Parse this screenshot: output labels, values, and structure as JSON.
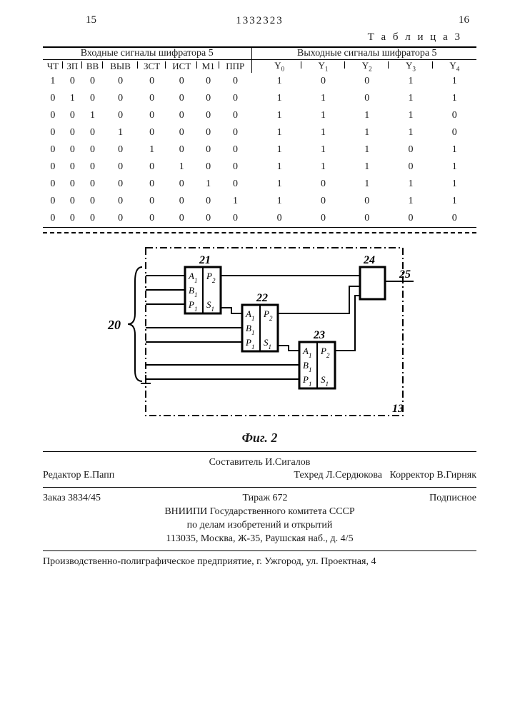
{
  "page": {
    "left_num": "15",
    "right_num": "16",
    "doc_number": "1332323"
  },
  "table": {
    "caption": "Т а б л и ц а  3",
    "group_input": "Входные сигналы шифратора 5",
    "group_output": "Выходные сигналы шифратора 5",
    "cols_in": [
      "ЧТ",
      "ЗП",
      "ВВ",
      "ВЫВ",
      "ЗСТ",
      "ИСТ",
      "М1",
      "ППР"
    ],
    "cols_out_base": "Y",
    "cols_out_idx": [
      "0",
      "1",
      "2",
      "3",
      "4"
    ],
    "rows": [
      [
        "1",
        "0",
        "0",
        "0",
        "0",
        "0",
        "0",
        "0",
        "1",
        "0",
        "0",
        "1",
        "1"
      ],
      [
        "0",
        "1",
        "0",
        "0",
        "0",
        "0",
        "0",
        "0",
        "1",
        "1",
        "0",
        "1",
        "1"
      ],
      [
        "0",
        "0",
        "1",
        "0",
        "0",
        "0",
        "0",
        "0",
        "1",
        "1",
        "1",
        "1",
        "0"
      ],
      [
        "0",
        "0",
        "0",
        "1",
        "0",
        "0",
        "0",
        "0",
        "1",
        "1",
        "1",
        "1",
        "0"
      ],
      [
        "0",
        "0",
        "0",
        "0",
        "1",
        "0",
        "0",
        "0",
        "1",
        "1",
        "1",
        "0",
        "1"
      ],
      [
        "0",
        "0",
        "0",
        "0",
        "0",
        "1",
        "0",
        "0",
        "1",
        "1",
        "1",
        "0",
        "1"
      ],
      [
        "0",
        "0",
        "0",
        "0",
        "0",
        "0",
        "1",
        "0",
        "1",
        "0",
        "1",
        "1",
        "1"
      ],
      [
        "0",
        "0",
        "0",
        "0",
        "0",
        "0",
        "0",
        "1",
        "1",
        "0",
        "0",
        "1",
        "1"
      ],
      [
        "0",
        "0",
        "0",
        "0",
        "0",
        "0",
        "0",
        "0",
        "0",
        "0",
        "0",
        "0",
        "0"
      ]
    ]
  },
  "diagram": {
    "caption": "Фиг. 2",
    "labels": {
      "bus": "20",
      "block1": "21",
      "block2": "22",
      "block3": "23",
      "block4": "24",
      "out": "25",
      "outer": "13",
      "A": "A",
      "B": "B",
      "P": "P",
      "S": "S",
      "P2": "P",
      "sub1": "1",
      "sub2": "2"
    }
  },
  "credits": {
    "editor": "Редактор Е.Папп",
    "compiler": "Составитель И.Сигалов",
    "techred": "Техред Л.Сердюкова",
    "corrector": "Корректор В.Гирняк",
    "order": "Заказ 3834/45",
    "tirazh": "Тираж 672",
    "podpis": "Подписное",
    "org1": "ВНИИПИ Государственного комитета СССР",
    "org2": "по делам изобретений и открытий",
    "addr1": "113035, Москва, Ж-35, Раушская наб., д. 4/5",
    "footer": "Производственно-полиграфическое предприятие, г. Ужгород, ул. Проектная, 4"
  }
}
